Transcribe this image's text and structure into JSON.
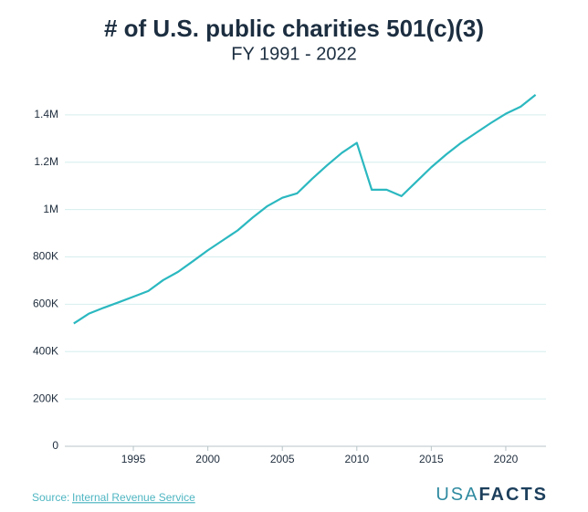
{
  "chart_data": {
    "type": "line",
    "title": "# of U.S. public charities 501(c)(3)",
    "subtitle": "FY 1991 - 2022",
    "x": [
      1991,
      1992,
      1993,
      1994,
      1995,
      1996,
      1997,
      1998,
      1999,
      2000,
      2001,
      2002,
      2003,
      2004,
      2005,
      2006,
      2007,
      2008,
      2009,
      2010,
      2011,
      2012,
      2013,
      2014,
      2015,
      2016,
      2017,
      2018,
      2019,
      2020,
      2021,
      2022
    ],
    "series": [
      {
        "name": "Public charities",
        "color": "#2bb8c0",
        "values": [
          519000,
          560000,
          585000,
          608000,
          632000,
          656000,
          702000,
          737000,
          782000,
          828000,
          870000,
          912000,
          966000,
          1015000,
          1050000,
          1069000,
          1130000,
          1187000,
          1240000,
          1282000,
          1084000,
          1084000,
          1057000,
          1118000,
          1179000,
          1233000,
          1282000,
          1324000,
          1366000,
          1405000,
          1435000,
          1485000
        ]
      }
    ],
    "xlim": [
      1990.4,
      2022.7
    ],
    "xticks": [
      1995,
      2000,
      2005,
      2010,
      2015,
      2020
    ],
    "ylim": [
      0,
      1500000
    ],
    "yticks": [
      0,
      {
        "value": 200000,
        "label": "200K"
      },
      {
        "value": 400000,
        "label": "400K"
      },
      {
        "value": 600000,
        "label": "600K"
      },
      {
        "value": 800000,
        "label": "800K"
      },
      {
        "value": 1000000,
        "label": "1M"
      },
      {
        "value": 1200000,
        "label": "1.2M"
      },
      {
        "value": 1400000,
        "label": "1.4M"
      }
    ],
    "grid": true
  },
  "footer": {
    "source_label": "Source:",
    "source": "Internal Revenue Service",
    "logo_light": "USA",
    "logo_bold": "FACTS"
  }
}
